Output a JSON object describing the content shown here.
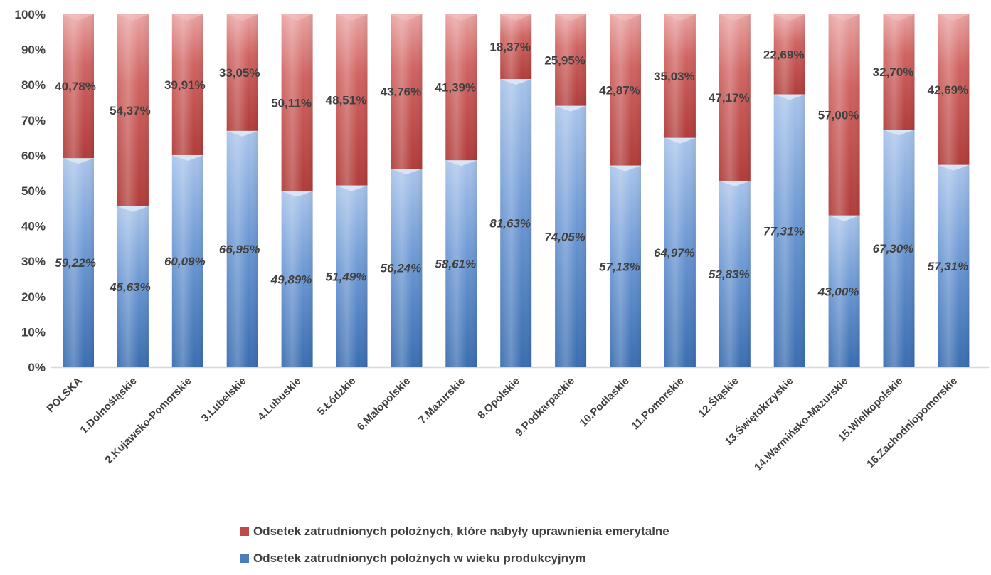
{
  "chart_data": {
    "type": "bar",
    "stacked": true,
    "ylim": [
      0,
      100
    ],
    "y_ticks": [
      "0%",
      "10%",
      "20%",
      "30%",
      "40%",
      "50%",
      "60%",
      "70%",
      "80%",
      "90%",
      "100%"
    ],
    "categories": [
      "POLSKA",
      "1.Dolnośląskie",
      "2.Kujawsko-Pomorskie",
      "3.Lubelskie",
      "4.Lubuskie",
      "5.Łódzkie",
      "6.Małopolskie",
      "7.Mazurskie",
      "8.Opolskie",
      "9.Podkarpackie",
      "10.Podlaskie",
      "11.Pomorskie",
      "12.Śląskie",
      "13.Świętokrzyskie",
      "14.Warmińsko-Mazurskie",
      "15.Wielkopolskie",
      "16.Zachodniopomorskie"
    ],
    "series": [
      {
        "name": "Odsetek zatrudnionych położnych w wieku produkcyjnym",
        "color": "#4a7ebb",
        "values": [
          59.22,
          45.63,
          60.09,
          66.95,
          49.89,
          51.49,
          56.24,
          58.61,
          81.63,
          74.05,
          57.13,
          64.97,
          52.83,
          77.31,
          43.0,
          67.3,
          57.31
        ],
        "labels": [
          "59,22%",
          "45,63%",
          "60,09%",
          "66,95%",
          "49,89%",
          "51,49%",
          "56,24%",
          "58,61%",
          "81,63%",
          "74,05%",
          "57,13%",
          "64,97%",
          "52,83%",
          "77,31%",
          "43,00%",
          "67,30%",
          "57,31%"
        ]
      },
      {
        "name": "Odsetek zatrudnionych położnych, które nabyły uprawnienia emerytalne",
        "color": "#be4b48",
        "values": [
          40.78,
          54.37,
          39.91,
          33.05,
          50.11,
          48.51,
          43.76,
          41.39,
          18.37,
          25.95,
          42.87,
          35.03,
          47.17,
          22.69,
          57.0,
          32.7,
          42.69
        ],
        "labels": [
          "40,78%",
          "54,37%",
          "39,91%",
          "33,05%",
          "50,11%",
          "48,51%",
          "43,76%",
          "41,39%",
          "18,37%",
          "25,95%",
          "42,87%",
          "35,03%",
          "47,17%",
          "22,69%",
          "57,00%",
          "32,70%",
          "42,69%"
        ]
      }
    ],
    "legend": [
      {
        "label": "Odsetek zatrudnionych położnych, które nabyły uprawnienia emerytalne",
        "color": "#be4b48"
      },
      {
        "label": "Odsetek zatrudnionych położnych w wieku produkcyjnym",
        "color": "#4a7ebb"
      }
    ],
    "legend_position": "bottom",
    "grid": false
  }
}
